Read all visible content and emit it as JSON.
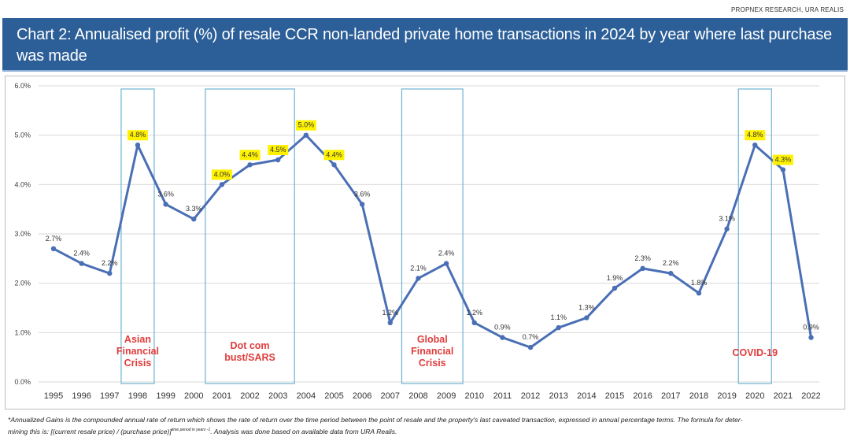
{
  "source": "PROPNEX RESEARCH, URA REALIS",
  "header": {
    "title": "Chart 2: Annualised profit (%) of resale CCR non-landed private home transactions in 2024 by year where last purchase was made"
  },
  "colors": {
    "banner": "#2c5f98",
    "line": "#4a6fb5",
    "highlight": "#fff200",
    "crisis_box": "#6fb3d2",
    "crisis_text": "#e03c3c"
  },
  "chart_data": {
    "type": "line",
    "title": "Chart 2: Annualised profit (%) of resale CCR non-landed private home transactions in 2024 by year where last purchase was made",
    "xlabel": "",
    "ylabel": "",
    "ylim": [
      0,
      6
    ],
    "yticks": [
      "0.0%",
      "1.0%",
      "2.0%",
      "3.0%",
      "4.0%",
      "5.0%",
      "6.0%"
    ],
    "grid": true,
    "legend": "none",
    "categories": [
      "1995",
      "1996",
      "1997",
      "1998",
      "1999",
      "2000",
      "2001",
      "2002",
      "2003",
      "2004",
      "2005",
      "2006",
      "2007",
      "2008",
      "2009",
      "2010",
      "2011",
      "2012",
      "2013",
      "2014",
      "2015",
      "2016",
      "2017",
      "2018",
      "2019",
      "2020",
      "2021",
      "2022"
    ],
    "series": [
      {
        "name": "Annualised profit (%)",
        "values": [
          2.7,
          2.4,
          2.2,
          4.8,
          3.6,
          3.3,
          4.0,
          4.4,
          4.5,
          5.0,
          4.4,
          3.6,
          1.2,
          2.1,
          2.4,
          1.2,
          0.9,
          0.7,
          1.1,
          1.3,
          1.9,
          2.3,
          2.2,
          1.8,
          3.1,
          4.8,
          4.3,
          0.9
        ],
        "labels": [
          "2.7%",
          "2.4%",
          "2.2%",
          "4.8%",
          "3.6%",
          "3.3%",
          "4.0%",
          "4.4%",
          "4.5%",
          "5.0%",
          "4.4%",
          "3.6%",
          "1.2%",
          "2.1%",
          "2.4%",
          "1.2%",
          "0.9%",
          "0.7%",
          "1.1%",
          "1.3%",
          "1.9%",
          "2.3%",
          "2.2%",
          "1.8%",
          "3.1%",
          "4.8%",
          "4.3%",
          "0.9%"
        ],
        "highlighted": [
          "1998",
          "2001",
          "2002",
          "2003",
          "2004",
          "2005",
          "2020",
          "2021"
        ]
      }
    ],
    "annotations": [
      {
        "label": "Asian Financial Crisis",
        "lines": [
          "Asian",
          "Financial",
          "Crisis"
        ],
        "from": "1998",
        "to": "1998"
      },
      {
        "label": "Dot com bust/SARS",
        "lines": [
          "Dot com",
          "bust/SARS"
        ],
        "from": "2001",
        "to": "2003"
      },
      {
        "label": "Global Financial Crisis",
        "lines": [
          "Global",
          "Financial",
          "Crisis"
        ],
        "from": "2008",
        "to": "2009"
      },
      {
        "label": "COVID-19",
        "lines": [
          "COVID-19"
        ],
        "from": "2020",
        "to": "2020"
      }
    ]
  },
  "footnote": {
    "line1": "*Annualized Gains is the compounded annual rate of return which shows the rate of return over the time period between the point of resale and the property's last caveated transaction, expressed in annual percentage terms. The formula for deter-",
    "line2_a": "mining this is: [(current resale price) / (purchase price)]",
    "line2_sup": "time period in years -1",
    "line2_b": ". Analysis was done based on available data from URA Realis."
  }
}
